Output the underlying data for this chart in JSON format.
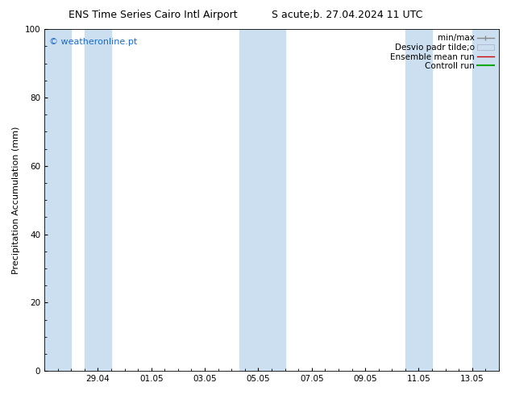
{
  "title_left": "ENS Time Series Cairo Intl Airport",
  "title_right": "S acute;b. 27.04.2024 11 UTC",
  "ylabel": "Precipitation Accumulation (mm)",
  "watermark": "© weatheronline.pt",
  "ylim": [
    0,
    100
  ],
  "yticks": [
    0,
    20,
    40,
    60,
    80,
    100
  ],
  "x_tick_labels": [
    "29.04",
    "01.05",
    "03.05",
    "05.05",
    "07.05",
    "09.05",
    "11.05",
    "13.05"
  ],
  "x_tick_positions": [
    2.0,
    4.0,
    6.0,
    8.0,
    10.0,
    12.0,
    14.0,
    16.0
  ],
  "x_min": 0,
  "x_max": 17.0,
  "shaded_bands": [
    {
      "x_start": 0.0,
      "x_end": 1.0
    },
    {
      "x_start": 1.5,
      "x_end": 2.5
    },
    {
      "x_start": 7.3,
      "x_end": 8.0
    },
    {
      "x_start": 8.0,
      "x_end": 9.0
    },
    {
      "x_start": 13.5,
      "x_end": 14.5
    },
    {
      "x_start": 16.0,
      "x_end": 17.0
    }
  ],
  "band_color": "#ccdff0",
  "background_color": "#ffffff",
  "legend_labels": [
    "min/max",
    "Desvio padr tilde;o",
    "Ensemble mean run",
    "Controll run"
  ],
  "title_fontsize": 9,
  "axis_fontsize": 8,
  "tick_fontsize": 7.5,
  "legend_fontsize": 7.5,
  "watermark_color": "#1a6bcc",
  "watermark_fontsize": 8
}
